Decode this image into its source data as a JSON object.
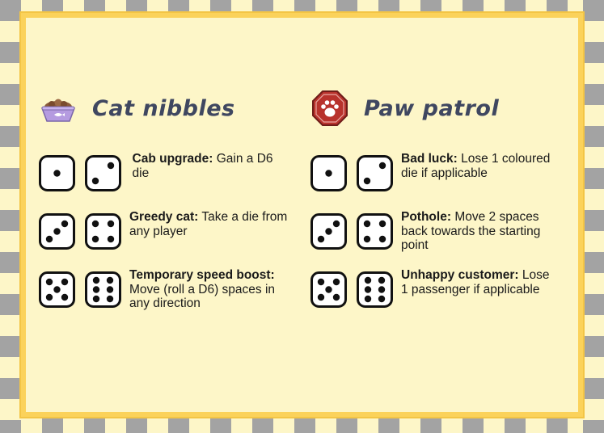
{
  "sections": {
    "left": {
      "title": "Cat nibbles",
      "icon": "cat-food-bowl-icon",
      "rows": [
        {
          "dice": [
            1,
            2
          ],
          "label": "Cab upgrade:",
          "text": "Gain a D6 die"
        },
        {
          "dice": [
            3,
            4
          ],
          "label": "Greedy cat:",
          "text": "Take a die from any player"
        },
        {
          "dice": [
            5,
            6
          ],
          "label": "Temporary speed boost:",
          "text": "Move (roll a D6) spaces in any direction"
        }
      ]
    },
    "right": {
      "title": "Paw patrol",
      "icon": "paw-stop-sign-icon",
      "rows": [
        {
          "dice": [
            1,
            2
          ],
          "label": "Bad luck:",
          "text": "Lose 1 coloured die if applicable"
        },
        {
          "dice": [
            3,
            4
          ],
          "label": "Pothole:",
          "text": "Move 2 spaces back towards the starting point"
        },
        {
          "dice": [
            5,
            6
          ],
          "label": "Unhappy customer:",
          "text": "Lose 1 passenger if applicable"
        }
      ]
    }
  },
  "colors": {
    "background": "#fdf6c8",
    "border": "#fbd25a",
    "stripe": "#a3a3a3",
    "title": "#3f4760",
    "stop_sign": "#b8322c",
    "bowl": "#b59be0"
  }
}
